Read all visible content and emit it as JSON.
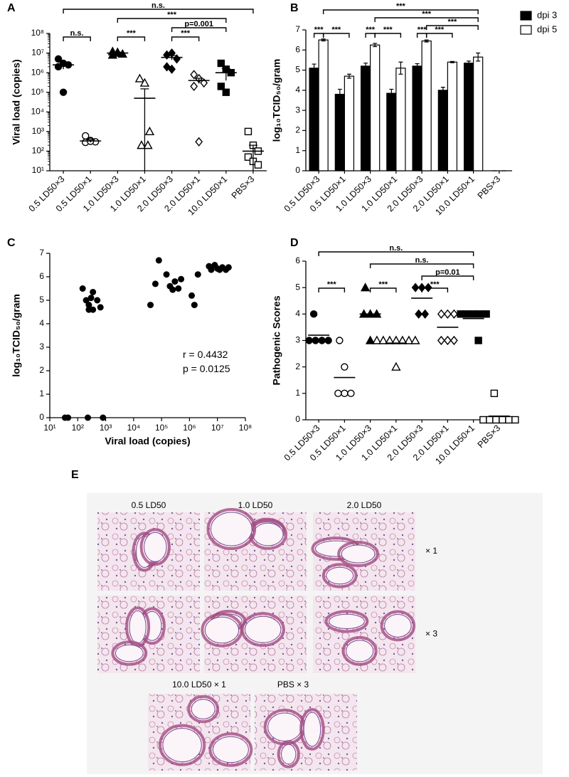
{
  "chart_data": [
    {
      "panel": "A",
      "type": "dot",
      "ylog": true,
      "ylabel": "Viral load (copies)",
      "categories": [
        "0.5 LD50×3",
        "0.5 LD50×1",
        "1.0 LD50×3",
        "1.0 LD50×1",
        "2.0 LD50×3",
        "2.0 LD50×1",
        "10.0 LD50×1",
        "PBS×3"
      ],
      "markers": [
        "circle-filled",
        "circle-open",
        "triangle-filled",
        "triangle-open",
        "diamond-filled",
        "diamond-open",
        "square-filled",
        "square-open"
      ],
      "points": [
        [
          5000000,
          3000000,
          2500000,
          2000000,
          100000
        ],
        [
          600,
          350,
          300,
          280,
          320
        ],
        [
          12000000,
          10000000,
          9000000,
          8000000,
          11000000
        ],
        [
          500000,
          300000,
          1000,
          200,
          200
        ],
        [
          8000000,
          10000000,
          5000000,
          2000000,
          1500000
        ],
        [
          800000,
          500000,
          300000,
          200000,
          300
        ],
        [
          3000000,
          1500000,
          1000000,
          200000,
          100000
        ],
        [
          1000,
          200,
          100,
          50,
          30,
          20
        ]
      ],
      "means": [
        2500000,
        330,
        10000000,
        50000,
        6000000,
        400000,
        1000000,
        100
      ],
      "sem": [
        1000000,
        50,
        1000000,
        100000,
        1500000,
        120000,
        600000,
        100
      ],
      "ylim": [
        10,
        100000000
      ],
      "yticks": [
        {
          "value": 10,
          "label": "10¹"
        },
        {
          "value": 100,
          "label": "10²"
        },
        {
          "value": 1000,
          "label": "10³"
        },
        {
          "value": 10000,
          "label": "10⁴"
        },
        {
          "value": 100000,
          "label": "10⁵"
        },
        {
          "value": 1000000,
          "label": "10⁶"
        },
        {
          "value": 10000000,
          "label": "10⁷"
        },
        {
          "value": 100000000,
          "label": "10⁸"
        }
      ],
      "brackets": [
        {
          "from": 0,
          "to": 1,
          "label": "n.s."
        },
        {
          "from": 2,
          "to": 3,
          "label": "***"
        },
        {
          "from": 4,
          "to": 5,
          "label": "***"
        },
        {
          "from": 4,
          "to": 6,
          "label": "p=0.001"
        },
        {
          "from": 2,
          "to": 6,
          "label": "***"
        },
        {
          "from": 0,
          "to": 7,
          "label": "n.s."
        }
      ]
    },
    {
      "panel": "B",
      "type": "bar",
      "ylabel": "log₁₀TCID₅₀/gram",
      "categories": [
        "0.5 LD50×3",
        "0.5 LD50×1",
        "1.0 LD50×3",
        "1.0 LD50×1",
        "2.0 LD50×3",
        "2.0 LD50×1",
        "10.0 LD50×1",
        "PBS×3"
      ],
      "series": [
        {
          "name": "dpi 3",
          "color": "#000000",
          "values": [
            5.1,
            3.8,
            5.2,
            3.85,
            5.2,
            4.0,
            5.35,
            0
          ],
          "errors": [
            0.2,
            0.25,
            0.15,
            0.2,
            0.12,
            0.15,
            0.1,
            0
          ]
        },
        {
          "name": "dpi 5",
          "color": "#ffffff",
          "values": [
            6.5,
            4.7,
            6.25,
            5.1,
            6.45,
            5.4,
            5.65,
            0
          ],
          "errors": [
            0.05,
            0.1,
            0.08,
            0.3,
            0.05,
            0.03,
            0.2,
            0
          ]
        }
      ],
      "ylim": [
        0,
        7
      ],
      "yticks": [
        0,
        1,
        2,
        3,
        4,
        5,
        6,
        7
      ],
      "legend": "top-right",
      "brackets": [
        {
          "from": [
            0,
            0
          ],
          "to": [
            0,
            1
          ],
          "label": "***"
        },
        {
          "from": [
            0,
            1
          ],
          "to": [
            1,
            1
          ],
          "label": "***"
        },
        {
          "from": [
            2,
            0
          ],
          "to": [
            2,
            1
          ],
          "label": "***"
        },
        {
          "from": [
            2,
            1
          ],
          "to": [
            3,
            1
          ],
          "label": "***"
        },
        {
          "from": [
            4,
            0
          ],
          "to": [
            4,
            1
          ],
          "label": "***"
        },
        {
          "from": [
            4,
            1
          ],
          "to": [
            5,
            1
          ],
          "label": "***"
        },
        {
          "from": [
            4,
            1
          ],
          "to": [
            6,
            1
          ],
          "label": "***"
        },
        {
          "from": [
            2,
            1
          ],
          "to": [
            6,
            1
          ],
          "label": "***"
        },
        {
          "from": [
            0,
            1
          ],
          "to": [
            6,
            1
          ],
          "label": "***"
        }
      ]
    },
    {
      "panel": "C",
      "type": "scatter",
      "xlog": true,
      "xlabel": "Viral load (copies)",
      "ylabel": "log₁₀TCID₅₀/gram",
      "x": [
        35,
        45,
        230,
        800,
        150,
        200,
        250,
        250,
        300,
        350,
        350,
        500,
        650,
        40000,
        60000,
        80000,
        150000,
        200000,
        250000,
        300000,
        400000,
        500000,
        1200000,
        1500000,
        2000000,
        5000000,
        6000000,
        8000000,
        10000000,
        12000000,
        15000000,
        20000000,
        25000000
      ],
      "y": [
        0,
        0,
        0,
        0,
        5.5,
        5.0,
        4.8,
        4.6,
        5.1,
        5.35,
        4.6,
        5.0,
        4.7,
        4.8,
        5.7,
        6.7,
        6.1,
        5.6,
        5.45,
        5.8,
        5.5,
        5.9,
        5.2,
        4.8,
        6.1,
        6.45,
        6.3,
        6.5,
        6.35,
        6.3,
        6.4,
        6.3,
        6.4
      ],
      "xlim": [
        10,
        100000000
      ],
      "xticks": [
        {
          "value": 10,
          "label": "10¹"
        },
        {
          "value": 100,
          "label": "10²"
        },
        {
          "value": 1000,
          "label": "10³"
        },
        {
          "value": 10000,
          "label": "10⁴"
        },
        {
          "value": 100000,
          "label": "10⁵"
        },
        {
          "value": 1000000,
          "label": "10⁶"
        },
        {
          "value": 10000000,
          "label": "10⁷"
        },
        {
          "value": 100000000,
          "label": "10⁸"
        }
      ],
      "ylim": [
        0,
        7
      ],
      "yticks": [
        0,
        1,
        2,
        3,
        4,
        5,
        6,
        7
      ],
      "annotations": [
        "r = 0.4432",
        "p = 0.0125"
      ]
    },
    {
      "panel": "D",
      "type": "dot",
      "ylabel": "Pathogenic Scores",
      "categories": [
        "0.5 LD50×3",
        "0.5 LD50×1",
        "1.0 LD50×3",
        "1.0 LD50×1",
        "2.0 LD50×3",
        "2.0 LD50×1",
        "10.0 LD50×1",
        "PBS×3"
      ],
      "markers": [
        "circle-filled",
        "circle-open",
        "triangle-filled",
        "triangle-open",
        "diamond-filled",
        "diamond-open",
        "square-filled",
        "square-open"
      ],
      "points": [
        [
          4,
          3,
          3,
          3,
          3
        ],
        [
          3,
          2,
          1,
          1,
          1
        ],
        [
          5,
          4,
          4,
          4,
          3
        ],
        [
          3,
          3,
          3,
          3,
          3,
          3,
          3,
          2
        ],
        [
          5,
          5,
          5,
          4,
          4
        ],
        [
          4,
          4,
          4,
          3,
          3,
          3
        ],
        [
          4,
          4,
          4,
          4,
          4,
          3
        ],
        [
          1,
          0,
          0,
          0,
          0,
          0,
          0
        ]
      ],
      "means": [
        3.2,
        1.6,
        4,
        2.9,
        4.6,
        3.5,
        3.83,
        0.14
      ],
      "ylim": [
        0,
        6
      ],
      "yticks": [
        0,
        1,
        2,
        3,
        4,
        5,
        6
      ],
      "brackets": [
        {
          "from": 0,
          "to": 1,
          "label": "***"
        },
        {
          "from": 2,
          "to": 3,
          "label": "***"
        },
        {
          "from": 4,
          "to": 5,
          "label": "***"
        },
        {
          "from": 4,
          "to": 6,
          "label": "p=0.01"
        },
        {
          "from": 2,
          "to": 6,
          "label": "n.s."
        },
        {
          "from": 0,
          "to": 6,
          "label": "n.s."
        }
      ]
    }
  ],
  "panel_e": {
    "panel": "E",
    "column_labels": [
      "0.5 LD50",
      "1.0 LD50",
      "2.0 LD50"
    ],
    "row_labels": [
      "× 1",
      "× 3"
    ],
    "bottom_labels": [
      "10.0 LD50 × 1",
      "PBS × 3"
    ]
  }
}
